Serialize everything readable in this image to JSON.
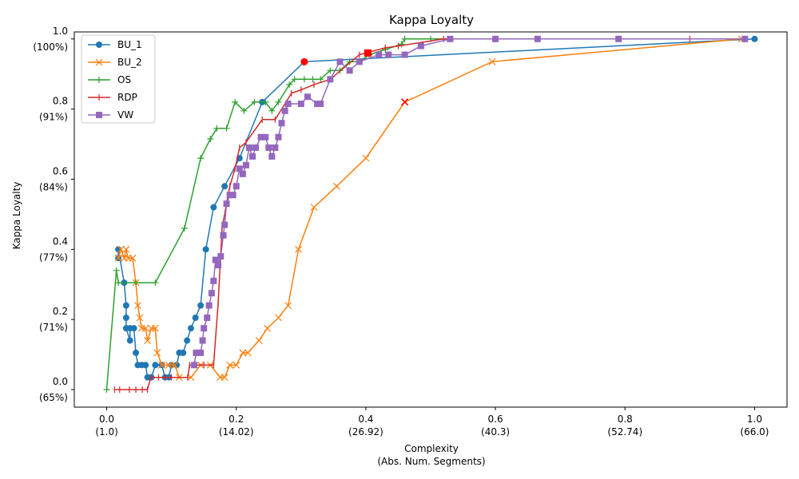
{
  "chart_data": {
    "type": "line",
    "title": "Kappa Loyalty",
    "ylabel": "Kappa Loyalty",
    "xlabel_lines": [
      "Complexity",
      "(Abs. Num. Segments)"
    ],
    "xlim": [
      -0.05,
      1.05
    ],
    "ylim": [
      -0.05,
      1.02
    ],
    "xticks": [
      {
        "value": 0.0,
        "label": "0.0",
        "sublabel": "(1.0)"
      },
      {
        "value": 0.2,
        "label": "0.2",
        "sublabel": "(14.02)"
      },
      {
        "value": 0.4,
        "label": "0.4",
        "sublabel": "(26.92)"
      },
      {
        "value": 0.6,
        "label": "0.6",
        "sublabel": "(40.3)"
      },
      {
        "value": 0.8,
        "label": "0.8",
        "sublabel": "(52.74)"
      },
      {
        "value": 1.0,
        "label": "1.0",
        "sublabel": "(66.0)"
      }
    ],
    "yticks": [
      {
        "value": 0.0,
        "label": "0.0",
        "sublabel": "(65%)"
      },
      {
        "value": 0.2,
        "label": "0.2",
        "sublabel": "(71%)"
      },
      {
        "value": 0.4,
        "label": "0.4",
        "sublabel": "(77%)"
      },
      {
        "value": 0.6,
        "label": "0.6",
        "sublabel": "(84%)"
      },
      {
        "value": 0.8,
        "label": "0.8",
        "sublabel": "(91%)"
      },
      {
        "value": 1.0,
        "label": "1.0",
        "sublabel": "(100%)"
      }
    ],
    "legend_position": "upper-left",
    "series": [
      {
        "name": "BU_1",
        "color": "#1f77b4",
        "marker": "circle",
        "points": [
          [
            0.018,
            0.375
          ],
          [
            0.018,
            0.4
          ],
          [
            0.027,
            0.305
          ],
          [
            0.03,
            0.24
          ],
          [
            0.03,
            0.205
          ],
          [
            0.03,
            0.175
          ],
          [
            0.036,
            0.14
          ],
          [
            0.036,
            0.175
          ],
          [
            0.042,
            0.175
          ],
          [
            0.045,
            0.105
          ],
          [
            0.048,
            0.07
          ],
          [
            0.054,
            0.07
          ],
          [
            0.06,
            0.07
          ],
          [
            0.063,
            0.035
          ],
          [
            0.069,
            0.035
          ],
          [
            0.075,
            0.07
          ],
          [
            0.085,
            0.07
          ],
          [
            0.09,
            0.035
          ],
          [
            0.096,
            0.035
          ],
          [
            0.1,
            0.07
          ],
          [
            0.108,
            0.07
          ],
          [
            0.112,
            0.105
          ],
          [
            0.118,
            0.105
          ],
          [
            0.124,
            0.14
          ],
          [
            0.13,
            0.175
          ],
          [
            0.137,
            0.205
          ],
          [
            0.145,
            0.24
          ],
          [
            0.153,
            0.4
          ],
          [
            0.165,
            0.52
          ],
          [
            0.182,
            0.58
          ],
          [
            0.205,
            0.66
          ],
          [
            0.24,
            0.82
          ],
          [
            0.305,
            0.935
          ],
          [
            1.0,
            1.0
          ]
        ],
        "highlight": [
          0.305,
          0.935
        ]
      },
      {
        "name": "BU_2",
        "color": "#ff7f0e",
        "marker": "x",
        "points": [
          [
            0.018,
            0.375
          ],
          [
            0.022,
            0.4
          ],
          [
            0.027,
            0.375
          ],
          [
            0.03,
            0.4
          ],
          [
            0.033,
            0.375
          ],
          [
            0.04,
            0.375
          ],
          [
            0.045,
            0.305
          ],
          [
            0.048,
            0.24
          ],
          [
            0.051,
            0.205
          ],
          [
            0.054,
            0.175
          ],
          [
            0.06,
            0.175
          ],
          [
            0.063,
            0.14
          ],
          [
            0.069,
            0.175
          ],
          [
            0.075,
            0.175
          ],
          [
            0.078,
            0.105
          ],
          [
            0.085,
            0.07
          ],
          [
            0.096,
            0.07
          ],
          [
            0.105,
            0.07
          ],
          [
            0.112,
            0.035
          ],
          [
            0.13,
            0.035
          ],
          [
            0.145,
            0.07
          ],
          [
            0.16,
            0.07
          ],
          [
            0.175,
            0.035
          ],
          [
            0.182,
            0.035
          ],
          [
            0.19,
            0.07
          ],
          [
            0.2,
            0.07
          ],
          [
            0.21,
            0.105
          ],
          [
            0.218,
            0.105
          ],
          [
            0.235,
            0.14
          ],
          [
            0.248,
            0.175
          ],
          [
            0.265,
            0.205
          ],
          [
            0.28,
            0.24
          ],
          [
            0.296,
            0.4
          ],
          [
            0.32,
            0.52
          ],
          [
            0.355,
            0.58
          ],
          [
            0.4,
            0.66
          ],
          [
            0.46,
            0.82
          ],
          [
            0.595,
            0.935
          ],
          [
            0.98,
            1.0
          ]
        ],
        "highlight": [
          0.46,
          0.82
        ]
      },
      {
        "name": "OS",
        "color": "#2ca02c",
        "marker": "plus",
        "points": [
          [
            0.0,
            0.0
          ],
          [
            0.015,
            0.34
          ],
          [
            0.018,
            0.305
          ],
          [
            0.045,
            0.305
          ],
          [
            0.075,
            0.305
          ],
          [
            0.12,
            0.46
          ],
          [
            0.145,
            0.66
          ],
          [
            0.16,
            0.715
          ],
          [
            0.17,
            0.745
          ],
          [
            0.185,
            0.745
          ],
          [
            0.198,
            0.82
          ],
          [
            0.212,
            0.795
          ],
          [
            0.228,
            0.82
          ],
          [
            0.245,
            0.82
          ],
          [
            0.255,
            0.795
          ],
          [
            0.265,
            0.82
          ],
          [
            0.282,
            0.87
          ],
          [
            0.29,
            0.885
          ],
          [
            0.305,
            0.885
          ],
          [
            0.318,
            0.885
          ],
          [
            0.33,
            0.885
          ],
          [
            0.345,
            0.91
          ],
          [
            0.36,
            0.91
          ],
          [
            0.375,
            0.935
          ],
          [
            0.39,
            0.935
          ],
          [
            0.405,
            0.955
          ],
          [
            0.43,
            0.97
          ],
          [
            0.455,
            0.985
          ],
          [
            0.46,
            1.0
          ],
          [
            0.5,
            1.0
          ],
          [
            0.79,
            1.0
          ]
        ]
      },
      {
        "name": "RDP",
        "color": "#d62728",
        "marker": "tick",
        "points": [
          [
            0.012,
            0.0
          ],
          [
            0.02,
            0.0
          ],
          [
            0.035,
            0.0
          ],
          [
            0.045,
            0.0
          ],
          [
            0.055,
            0.0
          ],
          [
            0.063,
            0.0
          ],
          [
            0.068,
            0.035
          ],
          [
            0.08,
            0.035
          ],
          [
            0.09,
            0.035
          ],
          [
            0.1,
            0.035
          ],
          [
            0.125,
            0.035
          ],
          [
            0.128,
            0.07
          ],
          [
            0.15,
            0.07
          ],
          [
            0.165,
            0.07
          ],
          [
            0.172,
            0.245
          ],
          [
            0.178,
            0.46
          ],
          [
            0.19,
            0.58
          ],
          [
            0.198,
            0.63
          ],
          [
            0.205,
            0.69
          ],
          [
            0.215,
            0.705
          ],
          [
            0.24,
            0.77
          ],
          [
            0.26,
            0.77
          ],
          [
            0.285,
            0.845
          ],
          [
            0.3,
            0.855
          ],
          [
            0.32,
            0.87
          ],
          [
            0.345,
            0.885
          ],
          [
            0.39,
            0.955
          ],
          [
            0.4,
            0.96
          ],
          [
            0.43,
            0.975
          ],
          [
            0.45,
            0.98
          ],
          [
            0.52,
            1.0
          ],
          [
            0.6,
            1.0
          ],
          [
            0.9,
            1.0
          ]
        ],
        "highlight": [
          0.403,
          0.96
        ]
      },
      {
        "name": "VW",
        "color": "#9467bd",
        "marker": "square",
        "points": [
          [
            0.135,
            0.07
          ],
          [
            0.138,
            0.105
          ],
          [
            0.14,
            0.105
          ],
          [
            0.145,
            0.105
          ],
          [
            0.148,
            0.14
          ],
          [
            0.15,
            0.175
          ],
          [
            0.155,
            0.205
          ],
          [
            0.158,
            0.24
          ],
          [
            0.162,
            0.275
          ],
          [
            0.165,
            0.31
          ],
          [
            0.168,
            0.37
          ],
          [
            0.172,
            0.355
          ],
          [
            0.176,
            0.38
          ],
          [
            0.18,
            0.44
          ],
          [
            0.182,
            0.47
          ],
          [
            0.185,
            0.53
          ],
          [
            0.19,
            0.555
          ],
          [
            0.195,
            0.555
          ],
          [
            0.2,
            0.58
          ],
          [
            0.205,
            0.63
          ],
          [
            0.21,
            0.615
          ],
          [
            0.215,
            0.64
          ],
          [
            0.22,
            0.69
          ],
          [
            0.225,
            0.665
          ],
          [
            0.23,
            0.69
          ],
          [
            0.238,
            0.72
          ],
          [
            0.245,
            0.72
          ],
          [
            0.25,
            0.69
          ],
          [
            0.255,
            0.665
          ],
          [
            0.26,
            0.69
          ],
          [
            0.265,
            0.72
          ],
          [
            0.27,
            0.76
          ],
          [
            0.275,
            0.795
          ],
          [
            0.28,
            0.815
          ],
          [
            0.3,
            0.815
          ],
          [
            0.31,
            0.835
          ],
          [
            0.325,
            0.815
          ],
          [
            0.33,
            0.815
          ],
          [
            0.345,
            0.885
          ],
          [
            0.36,
            0.935
          ],
          [
            0.375,
            0.91
          ],
          [
            0.39,
            0.935
          ],
          [
            0.42,
            0.955
          ],
          [
            0.435,
            0.955
          ],
          [
            0.46,
            0.955
          ],
          [
            0.485,
            0.98
          ],
          [
            0.53,
            1.0
          ],
          [
            0.6,
            1.0
          ],
          [
            0.665,
            1.0
          ],
          [
            0.79,
            1.0
          ],
          [
            0.985,
            1.0
          ]
        ]
      }
    ]
  }
}
